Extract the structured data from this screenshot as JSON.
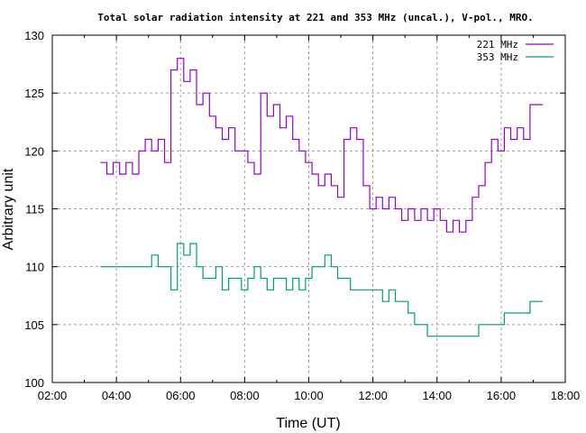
{
  "chart_data": {
    "type": "line",
    "title": "Total solar radiation intensity at 221 and 353 MHz (uncal.), V-pol., MRO.",
    "xlabel": "Time (UT)",
    "ylabel": "Arbitrary unit",
    "xlim_hours": [
      2,
      18
    ],
    "ylim": [
      100,
      130
    ],
    "x_ticks": [
      {
        "v": 2,
        "label": "02:00"
      },
      {
        "v": 4,
        "label": "04:00"
      },
      {
        "v": 6,
        "label": "06:00"
      },
      {
        "v": 8,
        "label": "08:00"
      },
      {
        "v": 10,
        "label": "10:00"
      },
      {
        "v": 12,
        "label": "12:00"
      },
      {
        "v": 14,
        "label": "14:00"
      },
      {
        "v": 16,
        "label": "16:00"
      },
      {
        "v": 18,
        "label": "18:00"
      }
    ],
    "y_ticks": [
      {
        "v": 100,
        "label": "100"
      },
      {
        "v": 105,
        "label": "105"
      },
      {
        "v": 110,
        "label": "110"
      },
      {
        "v": 115,
        "label": "115"
      },
      {
        "v": 120,
        "label": "120"
      },
      {
        "v": 125,
        "label": "125"
      },
      {
        "v": 130,
        "label": "130"
      }
    ],
    "grid": true,
    "legend_position": "top-right",
    "x_start_hours": 3.5,
    "x_step_hours": 0.2,
    "series": [
      {
        "name": "221 MHz",
        "color": "#9400d3",
        "values": [
          119,
          118,
          119,
          118,
          119,
          118,
          120,
          121,
          120,
          121,
          119,
          127,
          128,
          126,
          127,
          124,
          125,
          123,
          122,
          121,
          122,
          120,
          120,
          119,
          118,
          125,
          123,
          124,
          122,
          123,
          121,
          120,
          119,
          118,
          117,
          118,
          117,
          116,
          121,
          122,
          121,
          117,
          115,
          116,
          115,
          116,
          115,
          114,
          115,
          114,
          115,
          114,
          115,
          114,
          113,
          114,
          113,
          114,
          116,
          117,
          119,
          121,
          120,
          122,
          121,
          122,
          121,
          124,
          124
        ]
      },
      {
        "name": "353 MHz",
        "color": "#009e73",
        "values": [
          110,
          110,
          110,
          110,
          110,
          110,
          110,
          110,
          111,
          110,
          110,
          108,
          112,
          111,
          112,
          110,
          109,
          109,
          110,
          108,
          109,
          109,
          108,
          109,
          110,
          109,
          108,
          109,
          109,
          108,
          109,
          108,
          109,
          110,
          110,
          111,
          110,
          109,
          109,
          108,
          108,
          108,
          108,
          108,
          107,
          108,
          107,
          107,
          106,
          105,
          105,
          104,
          104,
          104,
          104,
          104,
          104,
          104,
          104,
          105,
          105,
          105,
          105,
          106,
          106,
          106,
          106,
          107,
          107
        ]
      }
    ]
  }
}
